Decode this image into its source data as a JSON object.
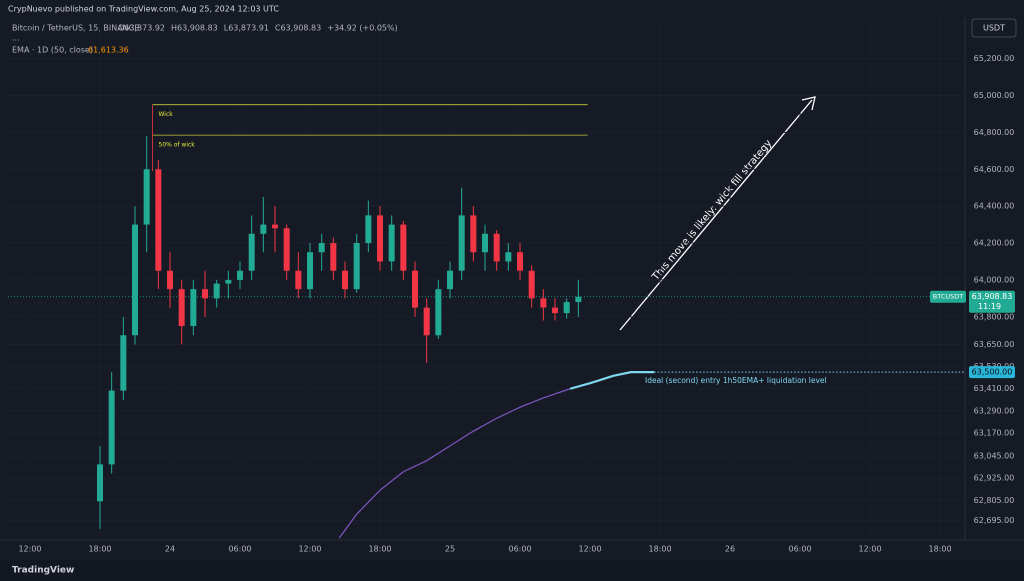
{
  "header": {
    "publisher": "CrypNuevo published on TradingView.com, Aug 25, 2024 12:03 UTC",
    "currency_button": "USDT"
  },
  "chart_data": {
    "type": "candlestick",
    "title": "Bitcoin / TetherUS, 15, BINANCE",
    "ohlc_labels": [
      "O63,873.92",
      "H63,908.83",
      "L63,873.91",
      "C63,908.83"
    ],
    "change": "+34.92 (+0.05%)",
    "indicator": "EMA · 1D (50, close)",
    "indicator_value": "61,613.36",
    "up_color": "#22ab94",
    "down_color": "#f23645",
    "x": [
      6,
      7,
      8,
      9,
      10,
      11,
      12,
      13,
      14,
      15,
      16,
      17,
      18,
      19,
      20,
      21,
      22,
      23,
      24,
      25,
      26,
      27,
      28,
      29,
      30,
      31,
      32,
      33,
      34,
      35,
      36,
      37,
      38,
      39,
      40,
      41,
      42,
      43,
      44,
      45,
      46,
      47
    ],
    "open": [
      62800,
      63000,
      63400,
      63700,
      64300,
      64600,
      64050,
      63950,
      63750,
      63950,
      63900,
      63980,
      64000,
      64050,
      64250,
      64300,
      64280,
      64050,
      63950,
      64150,
      64200,
      64050,
      63950,
      64200,
      64350,
      64100,
      64300,
      64050,
      63850,
      63700,
      63950,
      64050,
      64350,
      64150,
      64250,
      64100,
      64150,
      64050,
      63900,
      63850,
      63820,
      63880
    ],
    "high": [
      63100,
      63500,
      63800,
      64400,
      64780,
      64650,
      64150,
      64000,
      64000,
      64050,
      64000,
      64050,
      64100,
      64350,
      64450,
      64400,
      64300,
      64150,
      64200,
      64250,
      64230,
      64100,
      64250,
      64430,
      64400,
      64350,
      64320,
      64100,
      63900,
      64000,
      64100,
      64500,
      64400,
      64300,
      64270,
      64200,
      64200,
      64080,
      63950,
      63900,
      63900,
      64000
    ],
    "low": [
      62650,
      62950,
      63350,
      63650,
      64150,
      63950,
      63850,
      63650,
      63700,
      63800,
      63850,
      63900,
      63950,
      64000,
      64150,
      64150,
      64000,
      63900,
      63900,
      64050,
      64000,
      63900,
      63930,
      64150,
      64050,
      64050,
      64000,
      63800,
      63550,
      63680,
      63900,
      64000,
      64100,
      64050,
      64050,
      64050,
      64000,
      63850,
      63780,
      63780,
      63790,
      63800
    ],
    "close": [
      63000,
      63400,
      63700,
      64300,
      64600,
      64050,
      63950,
      63750,
      63950,
      63900,
      63980,
      64000,
      64050,
      64250,
      64300,
      64280,
      64050,
      63950,
      64150,
      64200,
      64050,
      63950,
      64200,
      64350,
      64100,
      64300,
      64050,
      63850,
      63700,
      63950,
      64050,
      64350,
      64150,
      64250,
      64100,
      64150,
      64050,
      63900,
      63850,
      63820,
      63880,
      63908.83
    ],
    "ema": {
      "color": "#7e57c2",
      "x": [
        26.5,
        28,
        30,
        32,
        34,
        36,
        38,
        40,
        42,
        44,
        46.3
      ],
      "values": [
        62600,
        62730,
        62860,
        62960,
        63020,
        63100,
        63180,
        63250,
        63310,
        63360,
        63410
      ]
    },
    "ema_projection": {
      "color": "#7fd8f0",
      "x": [
        46.3,
        48,
        50,
        51.5,
        53.5
      ],
      "values": [
        63410,
        63440,
        63480,
        63500,
        63500
      ]
    },
    "last_price": {
      "value": 63908.83,
      "label": "63,908.83",
      "symbol": "BTCUSDT",
      "countdown": "11:19"
    },
    "level": {
      "value": 63500,
      "label": "63,500.00",
      "note": "Ideal (second) entry 1h50EMA+ liquidation level"
    },
    "wick_box": {
      "top": 64950,
      "mid": 64785,
      "x": [
        10.5,
        47.8
      ],
      "top_label": "Wick",
      "mid_label": "50% of wick"
    },
    "arrow_note": "This move is likely: wick fill strategy",
    "xlim": [
      -1.886,
      80.14
    ],
    "ylim": [
      62590,
      65420
    ],
    "xticks": [
      {
        "value": 0,
        "label": "12:00"
      },
      {
        "value": 6,
        "label": "18:00"
      },
      {
        "value": 12,
        "label": "24"
      },
      {
        "value": 18,
        "label": "06:00"
      },
      {
        "value": 24,
        "label": "12:00"
      },
      {
        "value": 30,
        "label": "18:00"
      },
      {
        "value": 36,
        "label": "25"
      },
      {
        "value": 42,
        "label": "06:00"
      },
      {
        "value": 48,
        "label": "12:00"
      },
      {
        "value": 54,
        "label": "18:00"
      },
      {
        "value": 60,
        "label": "26"
      },
      {
        "value": 66,
        "label": "06:00"
      },
      {
        "value": 72,
        "label": "12:00"
      },
      {
        "value": 78,
        "label": "18:00"
      }
    ],
    "yticks": [
      {
        "value": 65200,
        "label": "65,200.00"
      },
      {
        "value": 65000,
        "label": "65,000.00"
      },
      {
        "value": 64800,
        "label": "64,800.00"
      },
      {
        "value": 64600,
        "label": "64,600.00"
      },
      {
        "value": 64400,
        "label": "64,400.00"
      },
      {
        "value": 64200,
        "label": "64,200.00"
      },
      {
        "value": 64000,
        "label": "64,000.00"
      },
      {
        "value": 63800,
        "label": "63,800.00"
      },
      {
        "value": 63650,
        "label": "63,650.00"
      },
      {
        "value": 63530,
        "label": "63,530.00"
      },
      {
        "value": 63410,
        "label": "63,410.00"
      },
      {
        "value": 63290,
        "label": "63,290.00"
      },
      {
        "value": 63170,
        "label": "63,170.00"
      },
      {
        "value": 63045,
        "label": "63,045.00"
      },
      {
        "value": 62925,
        "label": "62,925.00"
      },
      {
        "value": 62805,
        "label": "62,805.00"
      },
      {
        "value": 62695,
        "label": "62,695.00"
      }
    ],
    "grid": true
  },
  "footer": {
    "brand": "TradingView"
  }
}
